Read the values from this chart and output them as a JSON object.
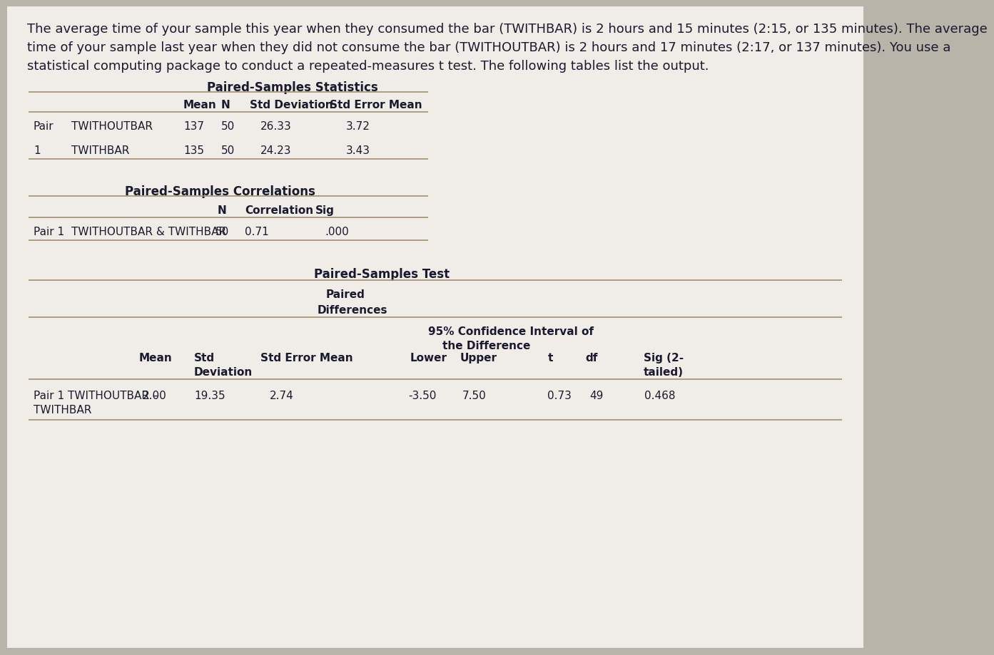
{
  "bg_color": "#b8b4aa",
  "panel_bg": "#f0ede8",
  "line_color": "#a09070",
  "text_color": "#1a1a2e",
  "intro_line1": "The average time of your sample this year when they consumed the bar (TWITHBAR) is 2 hours and 15 minutes (2:15, or 135 minutes). The average",
  "intro_line2": "time of your sample last year when they did not consume the bar (TWITHOUTBAR) is 2 hours and 17 minutes (2:17, or 137 minutes). You use a",
  "intro_line3": "statistical computing package to conduct a repeated-measures t test. The following tables list the output.",
  "t1_title": "Paired-Samples Statistics",
  "t1_col_hdrs": [
    "Mean",
    "N",
    "Std Deviation",
    "Std Error Mean"
  ],
  "t1_r1a": "Pair",
  "t1_r1b": "TWITHOUTBAR",
  "t1_r1d": [
    "137",
    "50",
    "26.33",
    "3.72"
  ],
  "t1_r2a": "1",
  "t1_r2b": "TWITHBAR",
  "t1_r2d": [
    "135",
    "50",
    "24.23",
    "3.43"
  ],
  "t2_title": "Paired-Samples Correlations",
  "t2_col_hdrs": [
    "N",
    "Correlation",
    "Sig"
  ],
  "t2_r1a": "Pair 1",
  "t2_r1b": "TWITHOUTBAR & TWITHBAR",
  "t2_r1d": [
    "50",
    "0.71",
    ".000"
  ],
  "t3_title": "Paired-Samples Test",
  "t3_paired": "Paired",
  "t3_diff": "Differences",
  "t3_ci1": "95% Confidence Interval of",
  "t3_ci2": "the Difference",
  "t3_hdr1": "Mean",
  "t3_hdr2": "Std",
  "t3_hdr2b": "Deviation",
  "t3_hdr3": "Std Error Mean",
  "t3_hdr4": "Lower",
  "t3_hdr5": "Upper",
  "t3_hdr6": "t",
  "t3_hdr7": "df",
  "t3_hdr8": "Sig (2-",
  "t3_hdr8b": "tailed)",
  "t3_r1a": "Pair 1 TWITHOUTBAR –",
  "t3_r1b": "TWITHBAR",
  "t3_r1d": [
    "2.00",
    "19.35",
    "2.74",
    "-3.50",
    "7.50",
    "0.73",
    "49",
    "0.468"
  ],
  "fs_intro": 13,
  "fs_title": 12,
  "fs_body": 11
}
